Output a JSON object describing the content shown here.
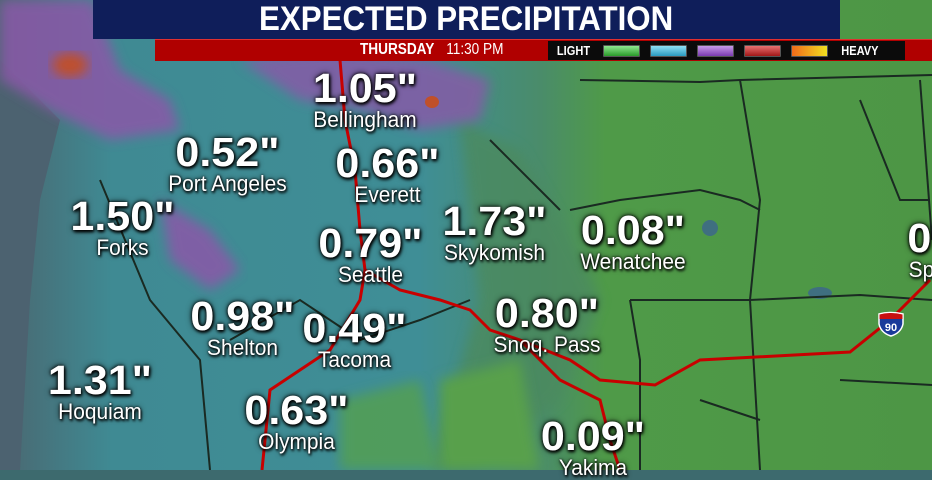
{
  "header": {
    "title": "EXPECTED PRECIPITATION",
    "day": "THURSDAY",
    "time": "11:30 PM"
  },
  "legend": {
    "low_label": "LIGHT",
    "high_label": "HEAVY",
    "swatches": [
      "#3fbf3f",
      "#3fb7d9",
      "#9b4fcf",
      "#c02a2a",
      "#f08a1a"
    ]
  },
  "colors": {
    "title_bg": "#0f1e5a",
    "bar_bg": "#b00000",
    "land_dry": "#4f9a4a",
    "wet": "#3e8c96",
    "ocean": "#4c6b72",
    "road": "#c80000"
  },
  "locations": [
    {
      "value": "1.05\"",
      "city": "Bellingham"
    },
    {
      "value": "0.52\"",
      "city": "Port Angeles"
    },
    {
      "value": "0.66\"",
      "city": "Everett"
    },
    {
      "value": "1.50\"",
      "city": "Forks"
    },
    {
      "value": "0.79\"",
      "city": "Seattle"
    },
    {
      "value": "1.73\"",
      "city": "Skykomish"
    },
    {
      "value": "0.08\"",
      "city": "Wenatchee"
    },
    {
      "value": "0.98\"",
      "city": "Shelton"
    },
    {
      "value": "0.49\"",
      "city": "Tacoma"
    },
    {
      "value": "0.80\"",
      "city": "Snoq. Pass"
    },
    {
      "value": "1.31\"",
      "city": "Hoquiam"
    },
    {
      "value": "0.63\"",
      "city": "Olympia"
    },
    {
      "value": "0.09\"",
      "city": "Yakima"
    },
    {
      "value": "0",
      "city": "Sp"
    }
  ],
  "highway_shield": "90"
}
